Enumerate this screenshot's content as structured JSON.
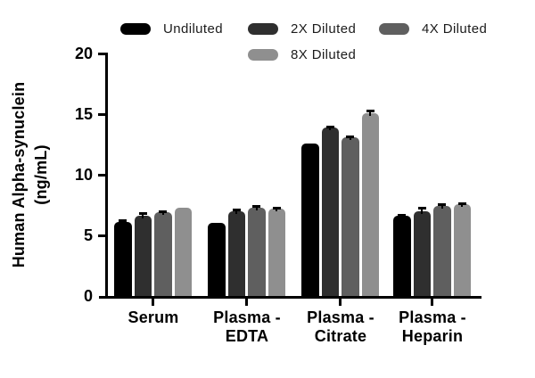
{
  "figure": {
    "background": "#ffffff",
    "text_color": "#000000"
  },
  "chart_data": {
    "type": "bar",
    "title": "",
    "ylabel": "Human Alpha-synuclein (ng/mL)",
    "ylabel_lines": [
      "Human Alpha-synuclein",
      "(ng/mL)"
    ],
    "xlabel": "",
    "ylim": [
      0,
      20
    ],
    "yticks": [
      0,
      5,
      10,
      15,
      20
    ],
    "grid": false,
    "legend_position": "top",
    "error_bars": "upper caps only, black",
    "categories": [
      "Serum",
      "Plasma - EDTA",
      "Plasma - Citrate",
      "Plasma - Heparin"
    ],
    "categories_lines": [
      [
        "Serum",
        ""
      ],
      [
        "Plasma -",
        "EDTA"
      ],
      [
        "Plasma -",
        "Citrate"
      ],
      [
        "Plasma -",
        "Heparin"
      ]
    ],
    "series": [
      {
        "name": "Undiluted",
        "color": "#000000",
        "values": [
          6.1,
          6.0,
          12.6,
          6.6
        ],
        "errors": [
          0.15,
          0,
          0,
          0.1
        ]
      },
      {
        "name": "2X Diluted",
        "color": "#2f2f2f",
        "values": [
          6.6,
          7.0,
          13.9,
          7.0
        ],
        "errors": [
          0.25,
          0.15,
          0.1,
          0.3
        ]
      },
      {
        "name": "4X Diluted",
        "color": "#5f5f5f",
        "values": [
          6.9,
          7.25,
          13.1,
          7.45
        ],
        "errors": [
          0.1,
          0.2,
          0.08,
          0.1
        ]
      },
      {
        "name": "8X Diluted",
        "color": "#8f8f8f",
        "values": [
          7.3,
          7.2,
          15.1,
          7.6
        ],
        "errors": [
          0,
          0.08,
          0.18,
          0.08
        ]
      }
    ]
  }
}
